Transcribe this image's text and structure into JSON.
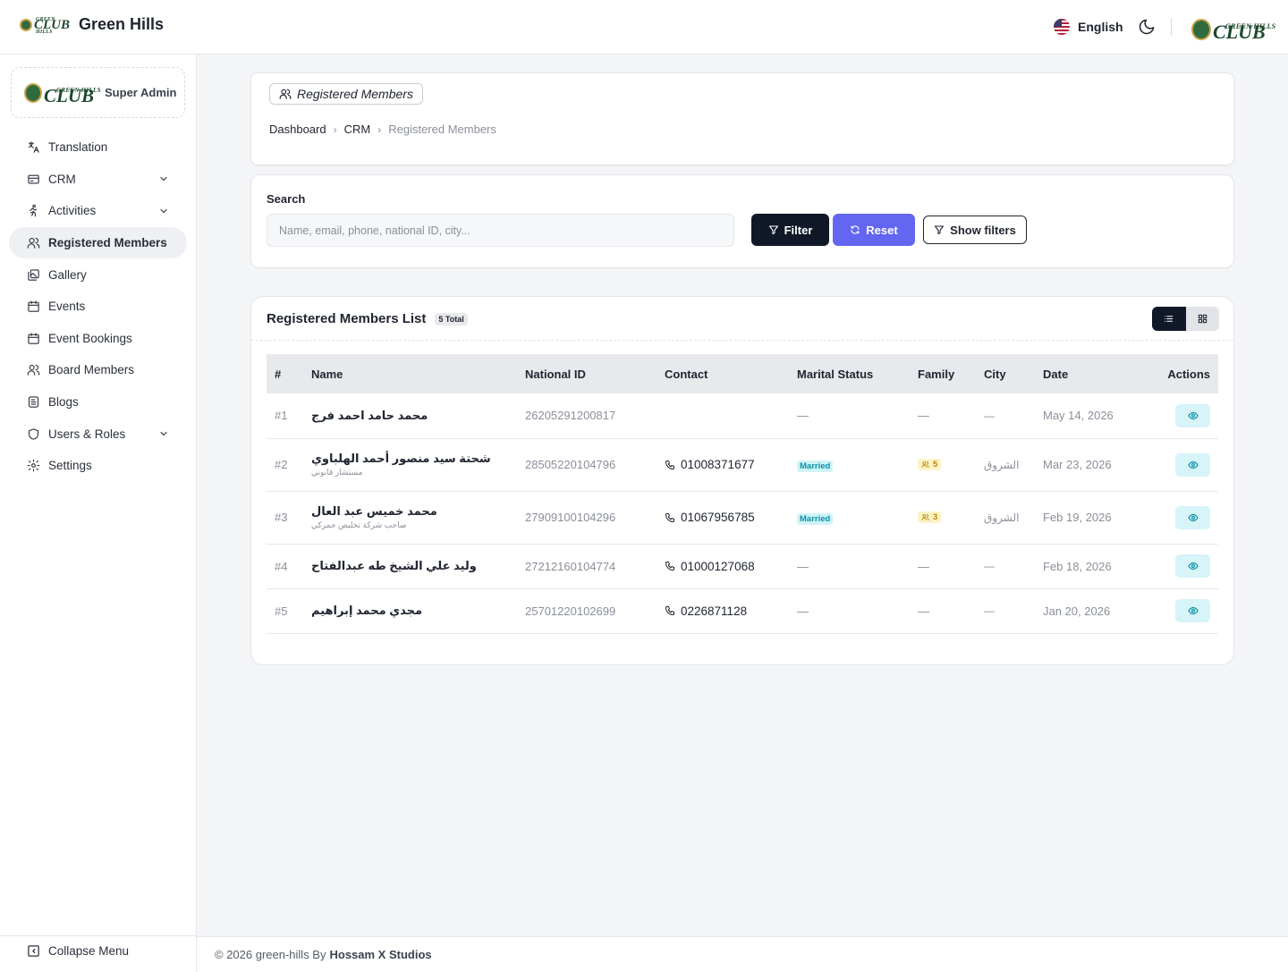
{
  "header": {
    "brand_title": "Green Hills",
    "logo_small_text": "GREEN HILLS",
    "logo_club_text": "CLUB",
    "language": "English"
  },
  "sidebar": {
    "role": "Super Admin",
    "items": [
      {
        "label": "Translation",
        "icon": "translate-icon",
        "has_chevron": false
      },
      {
        "label": "CRM",
        "icon": "crm-icon",
        "has_chevron": true
      },
      {
        "label": "Activities",
        "icon": "activities-icon",
        "has_chevron": true
      },
      {
        "label": "Registered Members",
        "icon": "users-icon",
        "has_chevron": false,
        "active": true
      },
      {
        "label": "Gallery",
        "icon": "gallery-icon",
        "has_chevron": false
      },
      {
        "label": "Events",
        "icon": "calendar-icon",
        "has_chevron": false
      },
      {
        "label": "Event Bookings",
        "icon": "calendar-icon",
        "has_chevron": false
      },
      {
        "label": "Board Members",
        "icon": "users-icon",
        "has_chevron": false
      },
      {
        "label": "Blogs",
        "icon": "blog-icon",
        "has_chevron": false
      },
      {
        "label": "Users & Roles",
        "icon": "shield-icon",
        "has_chevron": true
      },
      {
        "label": "Settings",
        "icon": "gear-icon",
        "has_chevron": false
      }
    ],
    "collapse_label": "Collapse Menu"
  },
  "page": {
    "title": "Registered Members",
    "breadcrumb": [
      "Dashboard",
      "CRM",
      "Registered Members"
    ]
  },
  "search": {
    "label": "Search",
    "placeholder": "Name, email, phone, national ID, city...",
    "value": "",
    "filter_label": "Filter",
    "reset_label": "Reset",
    "show_filters_label": "Show filters"
  },
  "list": {
    "title": "Registered Members List",
    "count_badge": "5 Total",
    "columns": [
      "#",
      "Name",
      "National ID",
      "Contact",
      "Marital Status",
      "Family",
      "City",
      "Date",
      "Actions"
    ],
    "rows": [
      {
        "num": "#1",
        "name": "محمد حامد احمد فرج",
        "subtitle": "",
        "national_id": "26205291200817",
        "phone": "",
        "marital": "—",
        "family": "—",
        "city": "—",
        "date": "May 14, 2026"
      },
      {
        "num": "#2",
        "name": "شحتة سيد منصور أحمد الهلباوي",
        "subtitle": "مستشار قانوني",
        "national_id": "28505220104796",
        "phone": "01008371677",
        "marital": "Married",
        "family": "5",
        "city": "الشروق",
        "date": "Mar 23, 2026"
      },
      {
        "num": "#3",
        "name": "محمد خميس عبد العال",
        "subtitle": "صاحب شركة تخليص جمركي",
        "national_id": "27909100104296",
        "phone": "01067956785",
        "marital": "Married",
        "family": "3",
        "city": "الشروق",
        "date": "Feb 19, 2026"
      },
      {
        "num": "#4",
        "name": "وليد علي الشيخ طه عبدالفتاح",
        "subtitle": "",
        "national_id": "27212160104774",
        "phone": "01000127068",
        "marital": "—",
        "family": "—",
        "city": "—",
        "date": "Feb 18, 2026"
      },
      {
        "num": "#5",
        "name": "مجدي محمد إبراهيم",
        "subtitle": "",
        "national_id": "25701220102699",
        "phone": "0226871128",
        "marital": "—",
        "family": "—",
        "city": "—",
        "date": "Jan 20, 2026"
      }
    ]
  },
  "footer": {
    "text": "© 2026 green-hills By",
    "author": "Hossam X Studios"
  },
  "colors": {
    "primary_dark": "#111827",
    "accent": "#6366f1",
    "married_bg": "#cff4f8",
    "family_bg": "#fdf3c7",
    "brand_green": "#1d4a2b"
  }
}
